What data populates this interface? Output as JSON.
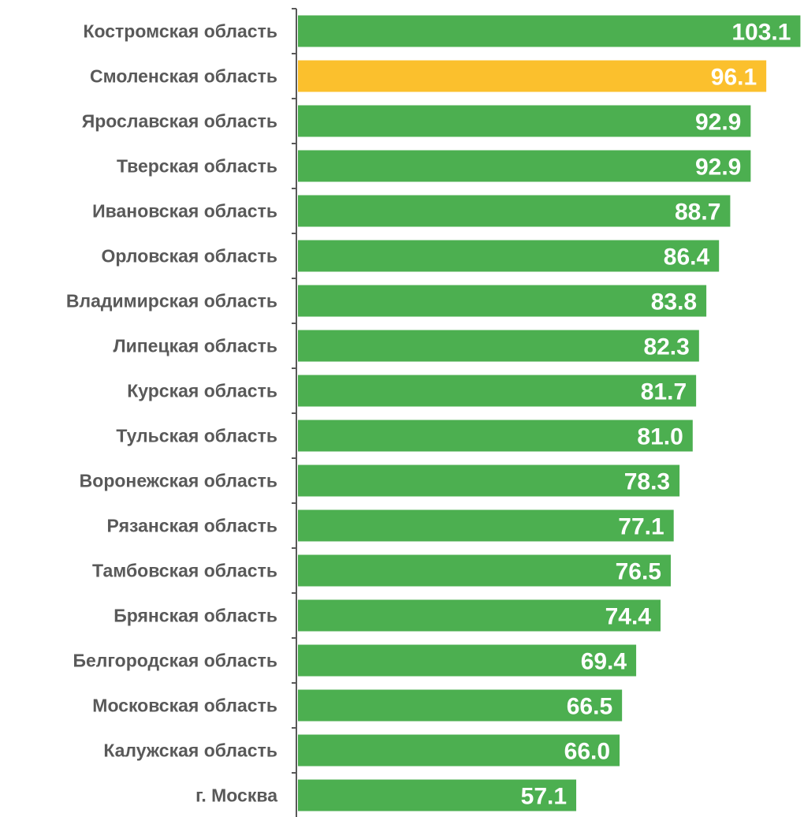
{
  "chart_data": {
    "type": "bar",
    "orientation": "horizontal",
    "categories": [
      "Костромская область",
      "Смоленская область",
      "Ярославская область",
      "Тверская область",
      "Ивановская область",
      "Орловская область",
      "Владимирская область",
      "Липецкая область",
      "Курская область",
      "Тульская область",
      "Воронежская область",
      "Рязанская область",
      "Тамбовская область",
      "Брянская область",
      "Белгородская область",
      "Московская область",
      "Калужская область",
      "г. Москва"
    ],
    "values": [
      103.1,
      96.1,
      92.9,
      92.9,
      88.7,
      86.4,
      83.8,
      82.3,
      81.7,
      81.0,
      78.3,
      77.1,
      76.5,
      74.4,
      69.4,
      66.5,
      66.0,
      57.1
    ],
    "value_labels": [
      "103.1",
      "96.1",
      "92.9",
      "92.9",
      "88.7",
      "86.4",
      "83.8",
      "82.3",
      "81.7",
      "81.0",
      "78.3",
      "77.1",
      "76.5",
      "74.4",
      "69.4",
      "66.5",
      "66.0",
      "57.1"
    ],
    "highlight": "Смоленская область",
    "colors": {
      "default": "#4caf50",
      "highlight": "#fbc02d"
    },
    "xlim": [
      0,
      104
    ],
    "title": "",
    "xlabel": "",
    "ylabel": "",
    "grid": false,
    "legend": "none"
  }
}
